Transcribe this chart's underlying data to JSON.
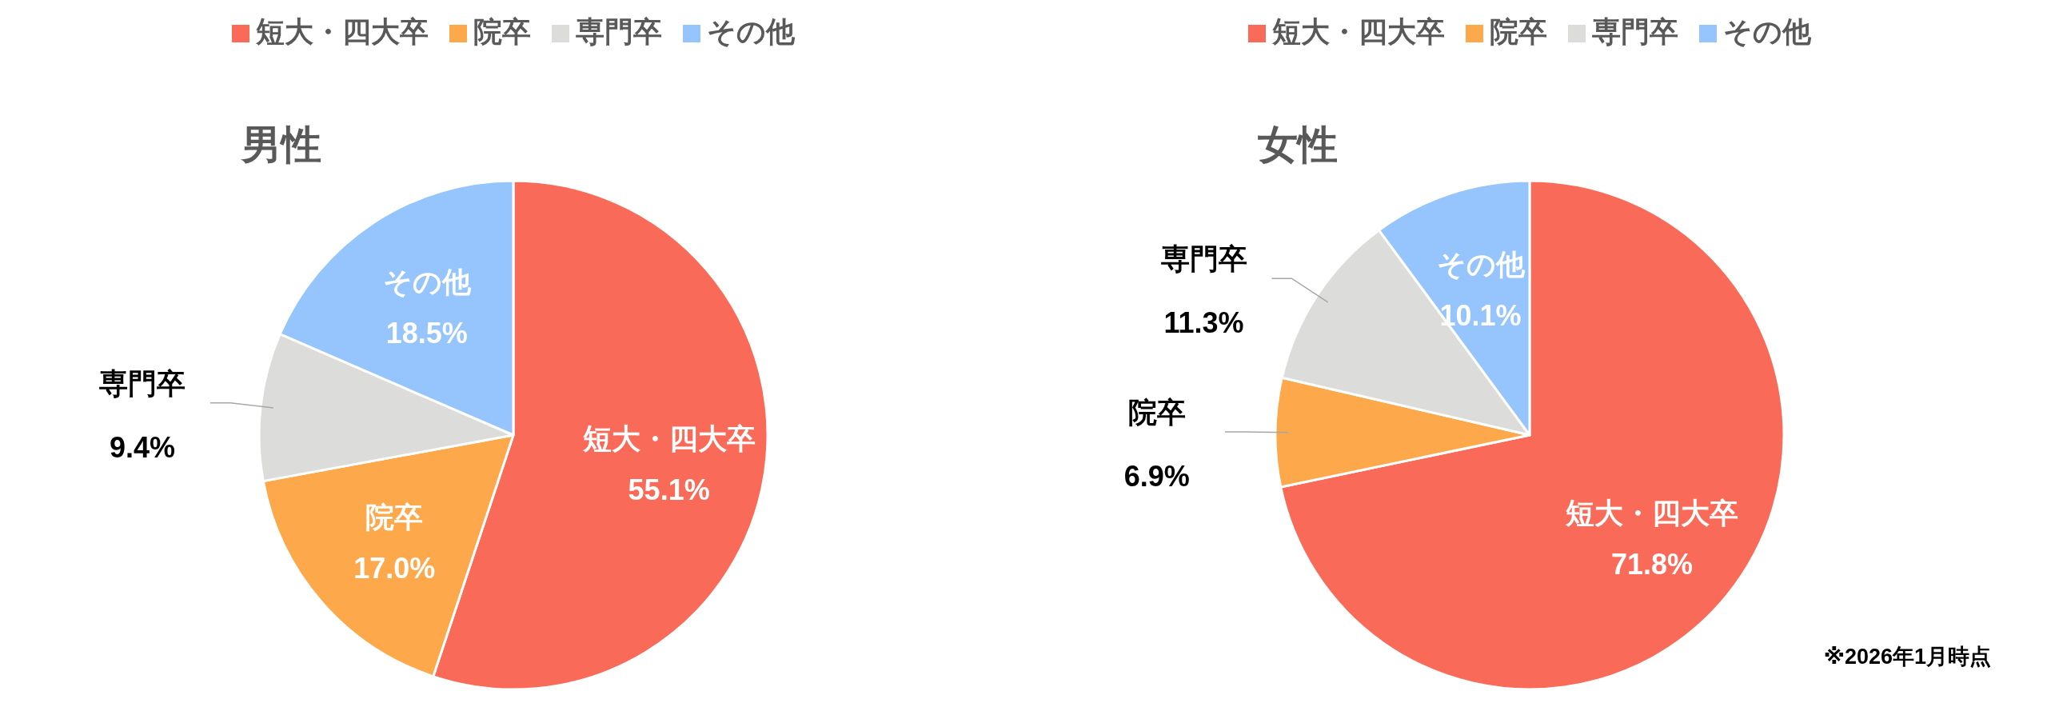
{
  "chart_data": [
    {
      "type": "pie",
      "title": "男性",
      "legend": "top",
      "value_labels": [
        "55.1%",
        "17.0%",
        "9.4%",
        "18.5%"
      ],
      "categories": [
        "短大・四大卒",
        "院卒",
        "専門卒",
        "その他"
      ],
      "values": [
        55.1,
        17.0,
        9.4,
        18.5
      ],
      "colors": [
        "#f96b58",
        "#fda84a",
        "#dcdcda",
        "#95c5fc"
      ]
    },
    {
      "type": "pie",
      "title": "女性",
      "legend": "top",
      "value_labels": [
        "71.8%",
        "6.9%",
        "11.3%",
        "10.1%"
      ],
      "categories": [
        "短大・四大卒",
        "院卒",
        "専門卒",
        "その他"
      ],
      "values": [
        71.8,
        6.9,
        11.3,
        10.1
      ],
      "colors": [
        "#f96b58",
        "#fda84a",
        "#dcdcda",
        "#95c5fc"
      ],
      "annotations": [
        "※2026年1月時点"
      ]
    }
  ]
}
